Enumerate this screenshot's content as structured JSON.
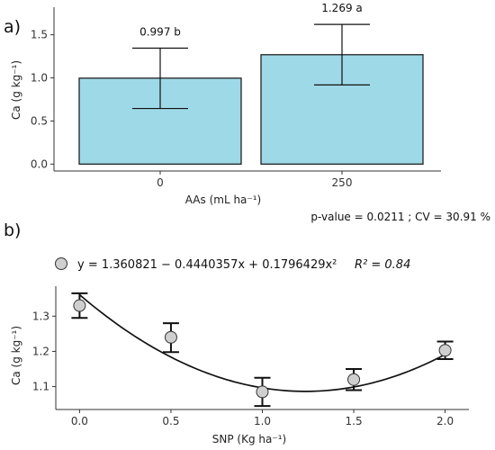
{
  "chart_data": [
    {
      "panel_label": "a)",
      "type": "bar",
      "categories": [
        "0",
        "250"
      ],
      "values": [
        0.997,
        1.269
      ],
      "error_low": [
        0.645,
        0.918
      ],
      "error_high": [
        1.345,
        1.62
      ],
      "bar_labels": [
        "0.997 b",
        "1.269 a"
      ],
      "xlabel": "AAs (mL ha⁻¹)",
      "ylabel": "Ca (g kg⁻¹)",
      "ylim": [
        -0.08,
        1.82
      ],
      "yticks": [
        "0.0",
        "0.5",
        "1.0",
        "1.5"
      ],
      "ytick_values": [
        0,
        0.5,
        1.0,
        1.5
      ],
      "bar_color": "#9ed9e8",
      "stats_text": "p-value  = 0.0211 ; CV =  30.91 %"
    },
    {
      "panel_label": "b)",
      "type": "scatter",
      "x": [
        0.0,
        0.5,
        1.0,
        1.5,
        2.0
      ],
      "y": [
        1.33,
        1.24,
        1.085,
        1.12,
        1.203
      ],
      "error_low": [
        1.295,
        1.198,
        1.045,
        1.09,
        1.178
      ],
      "error_high": [
        1.365,
        1.28,
        1.125,
        1.15,
        1.228
      ],
      "fit": {
        "intercept": 1.360821,
        "b1": -0.4440357,
        "b2": 0.1796429
      },
      "equation": "y = 1.360821 − 0.4440357x + 0.1796429x²",
      "r2_label": "R² = 0.84",
      "xlabel": "SNP  (Kg  ha⁻¹)",
      "ylabel": "Ca  (g  kg⁻¹)",
      "xlim": [
        -0.13,
        2.13
      ],
      "ylim": [
        1.035,
        1.385
      ],
      "xticks": [
        "0.0",
        "0.5",
        "1.0",
        "1.5",
        "2.0"
      ],
      "xtick_values": [
        0.0,
        0.5,
        1.0,
        1.5,
        2.0
      ],
      "yticks": [
        "1.1",
        "1.2",
        "1.3"
      ],
      "ytick_values": [
        1.1,
        1.2,
        1.3
      ],
      "marker_color": "#cfcfcf"
    }
  ]
}
